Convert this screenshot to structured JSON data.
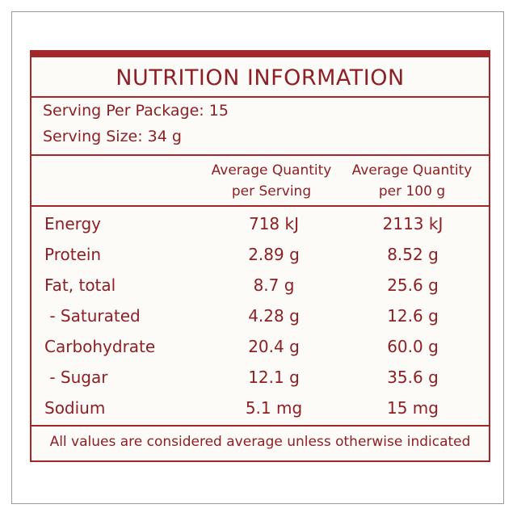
{
  "title": "NUTRITION INFORMATION",
  "serving_per_package": "Serving Per Package: 15",
  "serving_size": "Serving Size: 34 g",
  "columns": [
    {
      "line1": "Average Quantity",
      "line2": "per Serving"
    },
    {
      "line1": "Average Quantity",
      "line2": "per 100 g"
    }
  ],
  "rows": [
    {
      "label": "Energy",
      "per_serving": "718 kJ",
      "per_100g": "2113 kJ"
    },
    {
      "label": "Protein",
      "per_serving": "2.89 g",
      "per_100g": "8.52 g"
    },
    {
      "label": "Fat, total",
      "per_serving": "8.7 g",
      "per_100g": "25.6 g"
    },
    {
      "label": " - Saturated",
      "per_serving": "4.28 g",
      "per_100g": "12.6 g"
    },
    {
      "label": "Carbohydrate",
      "per_serving": "20.4 g",
      "per_100g": "60.0 g"
    },
    {
      "label": " - Sugar",
      "per_serving": "12.1 g",
      "per_100g": "35.6 g"
    },
    {
      "label": "Sodium",
      "per_serving": "5.1 mg",
      "per_100g": "15 mg"
    }
  ],
  "footer": "All values are considered average unless otherwise indicated",
  "colors": {
    "accent": "#a3262b",
    "text": "#8e1f24",
    "background": "#fcfbf8"
  }
}
